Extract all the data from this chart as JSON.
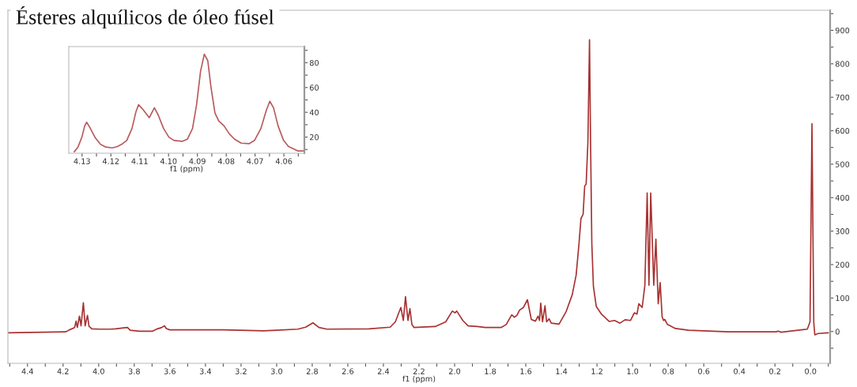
{
  "chart_data": [
    {
      "type": "line",
      "title": "Ésteres alquílicos de óleo fúsel",
      "xlabel": "f1 (ppm)",
      "color": "#a83232",
      "x": [
        4.51,
        4.186,
        4.164,
        4.135,
        4.127,
        4.12,
        4.108,
        4.099,
        4.086,
        4.076,
        4.063,
        4.054,
        4.046,
        4.039,
        3.994,
        3.935,
        3.905,
        3.86,
        3.838,
        3.823,
        3.771,
        3.697,
        3.67,
        3.645,
        3.63,
        3.62,
        3.601,
        3.519,
        3.297,
        3.074,
        3.0,
        2.881,
        2.837,
        2.796,
        2.762,
        2.718,
        2.481,
        2.362,
        2.333,
        2.302,
        2.288,
        2.276,
        2.262,
        2.251,
        2.24,
        2.228,
        2.109,
        2.05,
        2.013,
        1.998,
        1.988,
        1.954,
        1.924,
        1.873,
        1.828,
        1.739,
        1.71,
        1.679,
        1.664,
        1.65,
        1.635,
        1.613,
        1.591,
        1.569,
        1.546,
        1.531,
        1.523,
        1.516,
        1.506,
        1.492,
        1.483,
        1.469,
        1.457,
        1.413,
        1.373,
        1.339,
        1.317,
        1.301,
        1.29,
        1.278,
        1.269,
        1.261,
        1.251,
        1.242,
        1.236,
        1.229,
        1.22,
        1.204,
        1.175,
        1.131,
        1.101,
        1.071,
        1.042,
        1.012,
        0.99,
        0.975,
        0.965,
        0.946,
        0.931,
        0.918,
        0.908,
        0.898,
        0.881,
        0.869,
        0.856,
        0.845,
        0.834,
        0.826,
        0.819,
        0.804,
        0.759,
        0.685,
        0.463,
        0.196,
        0.181,
        0.166,
        0.018,
        0.003,
        -0.008,
        -0.018,
        -0.024,
        -0.043,
        -0.1
      ],
      "values": [
        -4,
        -1,
        5,
        12,
        31,
        12,
        46,
        17,
        86,
        17,
        48,
        15,
        12,
        8,
        7,
        7,
        8,
        11,
        12,
        4,
        1,
        1,
        8,
        12,
        17,
        9,
        5,
        5,
        5,
        2,
        4,
        7,
        13,
        26,
        12,
        7,
        8,
        13,
        29,
        72,
        33,
        104,
        33,
        68,
        21,
        12,
        15,
        29,
        61,
        56,
        61,
        33,
        17,
        15,
        12,
        12,
        21,
        50,
        43,
        48,
        64,
        72,
        95,
        36,
        31,
        46,
        33,
        85,
        29,
        77,
        29,
        38,
        25,
        22,
        60,
        110,
        169,
        263,
        338,
        350,
        435,
        440,
        566,
        872,
        566,
        263,
        134,
        75,
        52,
        30,
        33,
        25,
        35,
        33,
        56,
        52,
        83,
        72,
        138,
        414,
        138,
        414,
        138,
        276,
        83,
        146,
        44,
        33,
        36,
        21,
        9,
        4,
        -1,
        -1,
        1,
        -2,
        7,
        29,
        621,
        29,
        -10,
        -6,
        -4
      ],
      "xlim": [
        4.51,
        -0.11
      ],
      "xticks": [
        {
          "value": 4.5,
          "label": null
        },
        4.4,
        {
          "value": 4.3,
          "label": null
        },
        4.2,
        {
          "value": 4.1,
          "label": null
        },
        {
          "value": 4,
          "label": "4.0"
        },
        {
          "value": 3.9,
          "label": null
        },
        3.8,
        {
          "value": 3.7,
          "label": null
        },
        3.6,
        {
          "value": 3.5,
          "label": null
        },
        3.4,
        {
          "value": 3.3,
          "label": null
        },
        3.2,
        {
          "value": 3.1,
          "label": null
        },
        {
          "value": 3,
          "label": "3.0"
        },
        {
          "value": 2.9,
          "label": null
        },
        2.8,
        {
          "value": 2.7,
          "label": null
        },
        2.6,
        {
          "value": 2.5,
          "label": null
        },
        2.4,
        {
          "value": 2.3,
          "label": null
        },
        2.2,
        {
          "value": 2.1,
          "label": null
        },
        {
          "value": 2,
          "label": "2.0"
        },
        {
          "value": 1.9,
          "label": null
        },
        1.8,
        {
          "value": 1.7,
          "label": null
        },
        1.6,
        {
          "value": 1.5,
          "label": null
        },
        1.4,
        {
          "value": 1.3,
          "label": null
        },
        1.2,
        {
          "value": 1.1,
          "label": null
        },
        {
          "value": 1,
          "label": "1.0"
        },
        {
          "value": 0.9,
          "label": null
        },
        0.8,
        {
          "value": 0.7,
          "label": null
        },
        0.6,
        {
          "value": 0.5,
          "label": null
        },
        0.4,
        {
          "value": 0.3,
          "label": null
        },
        0.2,
        {
          "value": 0.1,
          "label": null
        },
        {
          "value": 0,
          "label": "0.0"
        },
        {
          "value": -0.1,
          "label": null
        }
      ],
      "ylim": [
        -95,
        960
      ],
      "yticks": [
        {
          "value": -50,
          "label": null
        },
        0,
        {
          "value": 50,
          "label": null
        },
        100,
        {
          "value": 150,
          "label": null
        },
        200,
        {
          "value": 250,
          "label": null
        },
        300,
        {
          "value": 350,
          "label": null
        },
        400,
        {
          "value": 450,
          "label": null
        },
        500,
        {
          "value": 550,
          "label": null
        },
        600,
        {
          "value": 650,
          "label": null
        },
        700,
        {
          "value": 750,
          "label": null
        },
        800,
        {
          "value": 850,
          "label": null
        },
        900,
        {
          "value": 950,
          "label": null
        }
      ]
    },
    {
      "type": "line",
      "xlabel": "f1 (ppm)",
      "color": "#b85a5c",
      "x": [
        4.1327,
        4.1314,
        4.13,
        4.1291,
        4.1284,
        4.1273,
        4.1254,
        4.1236,
        4.1218,
        4.1195,
        4.1177,
        4.1163,
        4.1145,
        4.1127,
        4.1113,
        4.1104,
        4.109,
        4.1067,
        4.1049,
        4.1035,
        4.1017,
        4.0999,
        4.0981,
        4.0953,
        4.0935,
        4.0917,
        4.0903,
        4.0889,
        4.0876,
        4.0864,
        4.0853,
        4.0839,
        4.0826,
        4.0807,
        4.0789,
        4.0771,
        4.0748,
        4.0721,
        4.0702,
        4.068,
        4.0661,
        4.0649,
        4.0636,
        4.062,
        4.0601,
        4.0584,
        4.0565,
        4.0551,
        4.0533
      ],
      "values": [
        8.2,
        12,
        20.4,
        28.9,
        32,
        27.8,
        19.4,
        14.1,
        12,
        11.3,
        12.4,
        14.1,
        17.3,
        26.8,
        40.5,
        46.2,
        42.6,
        35.6,
        43.7,
        37.3,
        26.8,
        20,
        17.3,
        16.6,
        18.3,
        26.8,
        45.8,
        73.2,
        86.9,
        81.7,
        60.5,
        39.4,
        33.1,
        28.9,
        22.5,
        18.3,
        15.1,
        14.7,
        17.3,
        26.8,
        41.6,
        48.9,
        43.7,
        28.9,
        17.3,
        12.4,
        10.3,
        8.8,
        8.8
      ],
      "xlim": [
        4.1346,
        4.0529
      ],
      "xticks": [
        4.13,
        {
          "value": 4.125,
          "label": null
        },
        4.12,
        {
          "value": 4.115,
          "label": null
        },
        4.11,
        {
          "value": 4.105,
          "label": null
        },
        {
          "value": 4.1,
          "label": "4.10"
        },
        {
          "value": 4.095,
          "label": null
        },
        4.09,
        {
          "value": 4.085,
          "label": null
        },
        4.08,
        {
          "value": 4.075,
          "label": null
        },
        4.07,
        {
          "value": 4.065,
          "label": null
        },
        4.06,
        {
          "value": 4.055,
          "label": null
        }
      ],
      "ylim": [
        7,
        93
      ],
      "yticks": [
        {
          "value": 10,
          "label": null
        },
        20,
        {
          "value": 30,
          "label": null
        },
        40,
        {
          "value": 50,
          "label": null
        },
        60,
        {
          "value": 70,
          "label": null
        },
        80,
        {
          "value": 90,
          "label": null
        }
      ]
    }
  ]
}
